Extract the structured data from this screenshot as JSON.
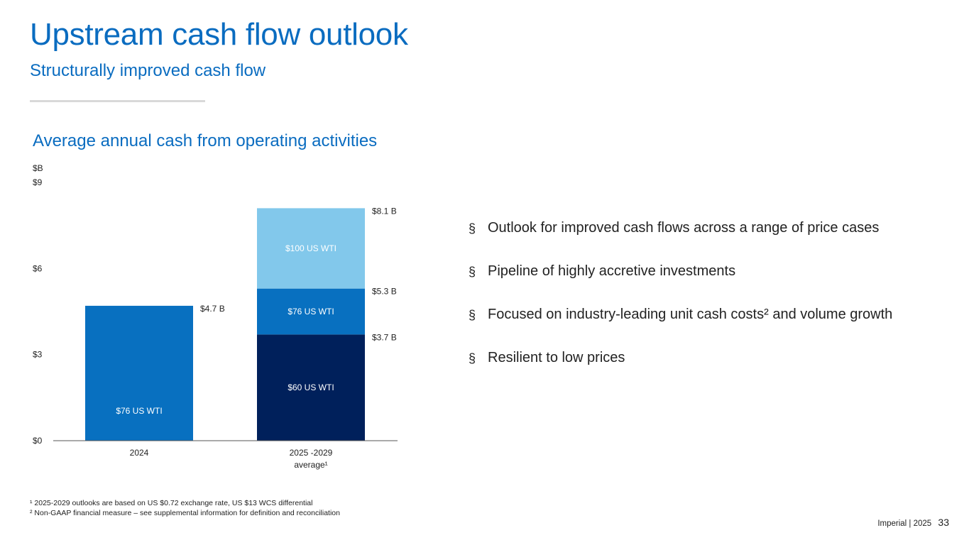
{
  "title": "Upstream cash flow outlook",
  "subtitle": "Structurally improved cash flow",
  "chart_data": {
    "type": "bar",
    "stacked": true,
    "title": "Average annual cash from operating activities",
    "ylabel": "$B",
    "ylim": [
      0,
      9
    ],
    "yticks": [
      "$0",
      "$3",
      "$6",
      "$9"
    ],
    "ytick_values": [
      0,
      3,
      6,
      9
    ],
    "categories": [
      "2024",
      "2025 -2029 average¹"
    ],
    "category_lines": [
      [
        "2024"
      ],
      [
        "2025 -2029",
        "average¹"
      ]
    ],
    "bars": [
      {
        "category": "2024",
        "segments": [
          {
            "label": "$76 US WTI",
            "value": 4.7,
            "color": "#0870c0"
          }
        ],
        "total_labels": [
          {
            "text": "$4.7 B",
            "value": 4.7
          }
        ]
      },
      {
        "category": "2025 -2029 average¹",
        "segments": [
          {
            "label": "$60 US WTI",
            "value": 3.7,
            "color": "#00205b"
          },
          {
            "label": "$76 US WTI",
            "value": 1.6,
            "color": "#0870c0"
          },
          {
            "label": "$100 US WTI",
            "value": 2.8,
            "color": "#82c8eb"
          }
        ],
        "total_labels": [
          {
            "text": "$3.7 B",
            "value": 3.7
          },
          {
            "text": "$5.3 B",
            "value": 5.3
          },
          {
            "text": "$8.1 B",
            "value": 8.1
          }
        ]
      }
    ]
  },
  "bullets": [
    {
      "text": "Outlook for improved cash flows across a range of price cases"
    },
    {
      "text": "Pipeline of highly accretive investments"
    },
    {
      "text": "Focused on industry-leading unit cash costs² and volume growth"
    },
    {
      "text": "Resilient to low prices"
    }
  ],
  "bullet_symbol": "§",
  "footnotes": [
    "¹ 2025-2029 outlooks are based on US $0.72 exchange rate, US $13 WCS differential",
    "² Non-GAAP financial measure – see supplemental information for definition and reconciliation"
  ],
  "footer": {
    "company": "Imperial",
    "separator": "|",
    "year": "2025",
    "page": "33"
  }
}
